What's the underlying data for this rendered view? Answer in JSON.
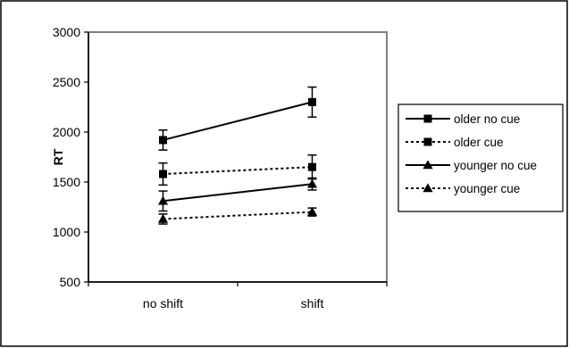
{
  "chart_data": {
    "type": "line",
    "title": "",
    "xlabel": "",
    "ylabel": "RT",
    "categories": [
      "no shift",
      "shift"
    ],
    "ylim": [
      500,
      3000
    ],
    "yticks": [
      500,
      1000,
      1500,
      2000,
      2500,
      3000
    ],
    "grid": false,
    "legend_position": "right",
    "plot_background": "#ffffff",
    "plot_border_color": "#808080",
    "series": [
      {
        "name": "older no cue",
        "values": [
          1920,
          2300
        ],
        "errors": [
          100,
          150
        ],
        "marker": "square",
        "dash": "solid",
        "color": "#000000"
      },
      {
        "name": "older cue",
        "values": [
          1580,
          1650
        ],
        "errors": [
          110,
          120
        ],
        "marker": "square",
        "dash": "dotted",
        "color": "#000000"
      },
      {
        "name": "younger no cue",
        "values": [
          1310,
          1480
        ],
        "errors": [
          100,
          60
        ],
        "marker": "triangle",
        "dash": "solid",
        "color": "#000000"
      },
      {
        "name": "younger cue",
        "values": [
          1130,
          1200
        ],
        "errors": [
          50,
          40
        ],
        "marker": "triangle",
        "dash": "dotted",
        "color": "#000000"
      }
    ]
  }
}
